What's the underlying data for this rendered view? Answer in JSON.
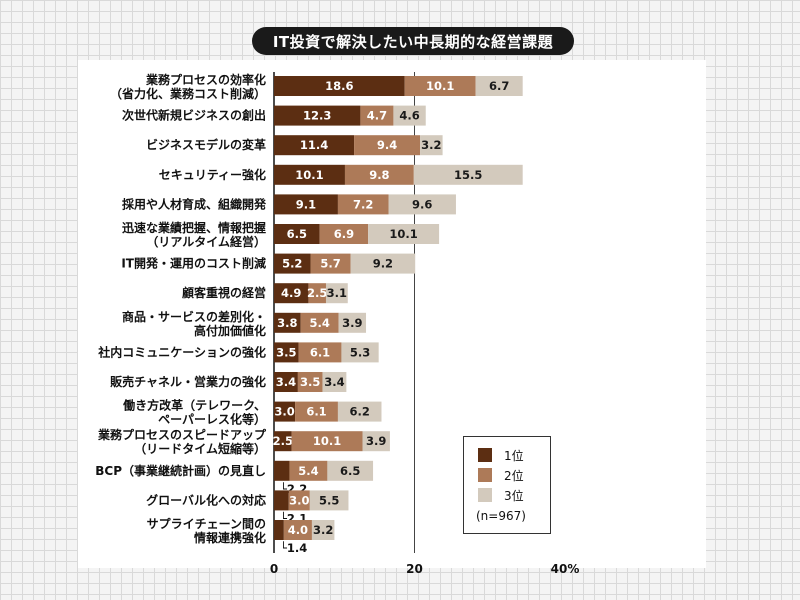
{
  "chart_data": {
    "type": "bar",
    "stacked": true,
    "orientation": "horizontal",
    "title": "IT投資で解決したい中長期的な経営課題",
    "categories": [
      [
        "業務プロセスの効率化",
        "（省力化、業務コスト削減）"
      ],
      [
        "次世代新規ビジネスの創出"
      ],
      [
        "ビジネスモデルの変革"
      ],
      [
        "セキュリティー強化"
      ],
      [
        "採用や人材育成、組織開発"
      ],
      [
        "迅速な業績把握、情報把握",
        "（リアルタイム経営）"
      ],
      [
        "IT開発・運用のコスト削減"
      ],
      [
        "顧客重視の経営"
      ],
      [
        "商品・サービスの差別化・",
        "高付加価値化"
      ],
      [
        "社内コミュニケーションの強化"
      ],
      [
        "販売チャネル・営業力の強化"
      ],
      [
        "働き方改革（テレワーク、",
        "ペーパーレス化等）"
      ],
      [
        "業務プロセスのスピードアップ",
        "（リードタイム短縮等）"
      ],
      [
        "BCP（事業継続計画）の見直し"
      ],
      [
        "グローバル化への対応"
      ],
      [
        "サプライチェーン間の",
        "情報連携強化"
      ]
    ],
    "series": [
      {
        "name": "1位",
        "color": "#5c2e12",
        "values": [
          18.6,
          12.3,
          11.4,
          10.1,
          9.1,
          6.5,
          5.2,
          4.9,
          3.8,
          3.5,
          3.4,
          3.0,
          2.5,
          2.2,
          2.1,
          1.4
        ]
      },
      {
        "name": "2位",
        "color": "#ad7a58",
        "values": [
          10.1,
          4.7,
          9.4,
          9.8,
          7.2,
          6.9,
          5.7,
          2.5,
          5.4,
          6.1,
          3.5,
          6.1,
          10.1,
          5.4,
          3.0,
          4.0
        ]
      },
      {
        "name": "3位",
        "color": "#d3cabd",
        "values": [
          6.7,
          4.6,
          3.2,
          15.5,
          9.6,
          10.1,
          9.2,
          3.1,
          3.9,
          5.3,
          3.4,
          6.2,
          3.9,
          6.5,
          5.5,
          3.2
        ]
      }
    ],
    "xlim": [
      0,
      40
    ],
    "xticks": [
      "0",
      "20",
      "40%"
    ],
    "grid": "vertical line at 20",
    "legend_position": "bottom-right",
    "note": "(n=967)"
  }
}
